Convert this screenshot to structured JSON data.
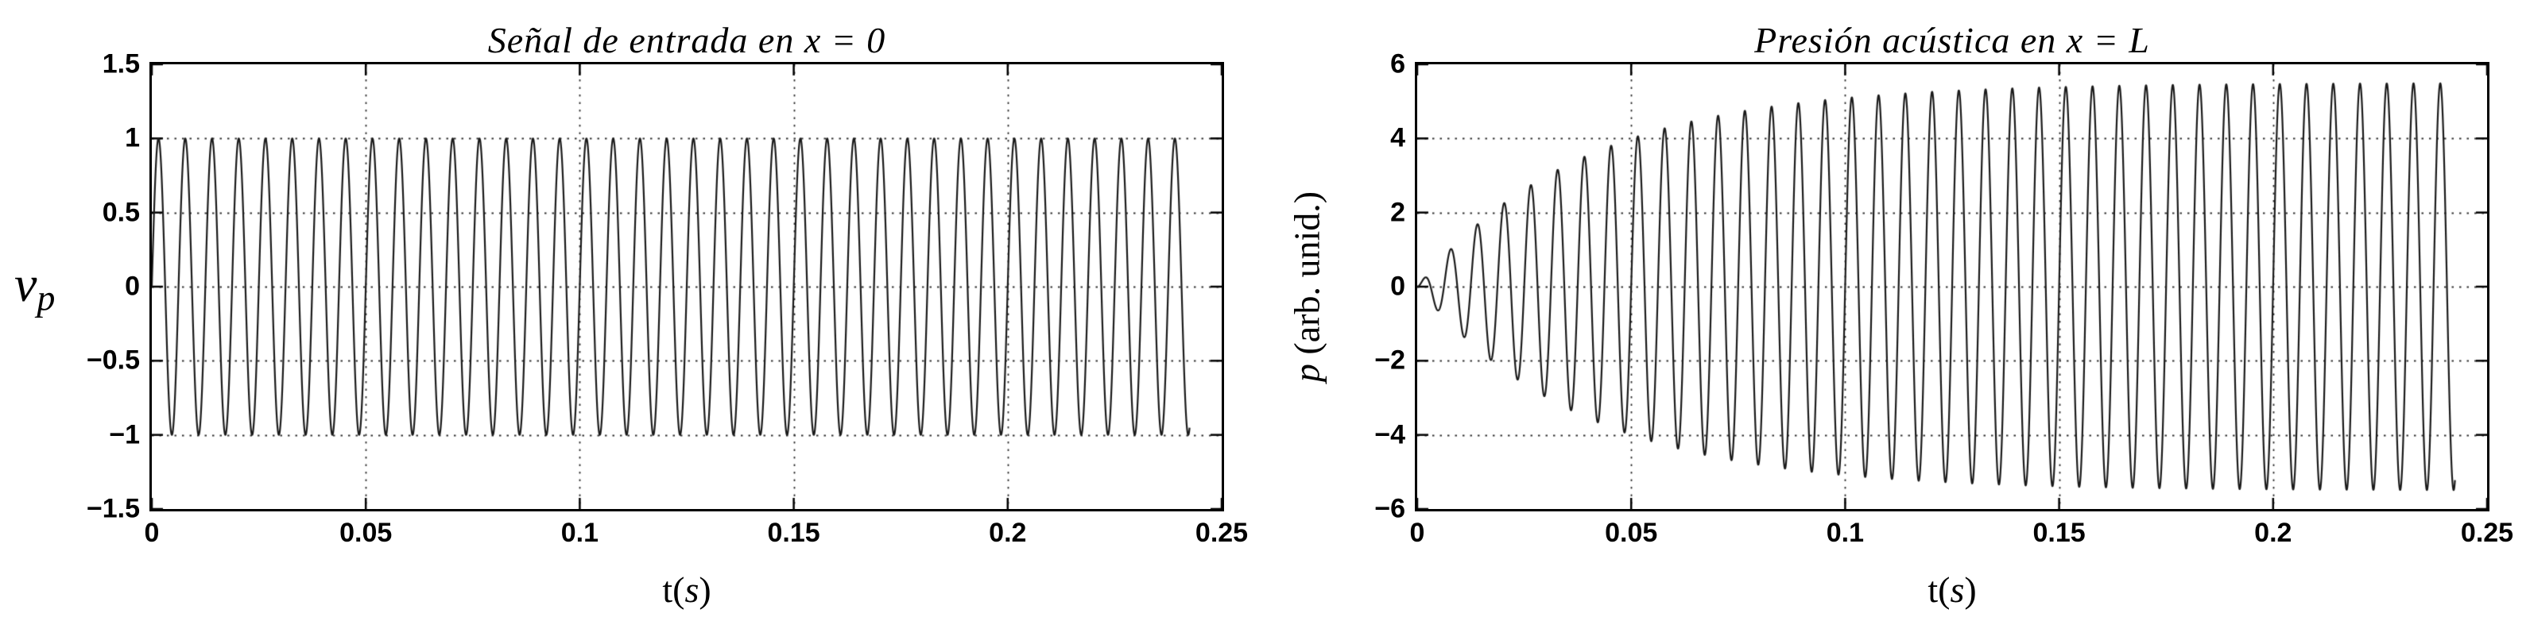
{
  "page": {
    "background": "#ffffff"
  },
  "chart_data": [
    {
      "type": "line",
      "title": "Señal de entrada en x = 0",
      "xlabel": "t(s)",
      "xlabel_pre": "t(",
      "xlabel_var": "s",
      "xlabel_post": ")",
      "ylabel": "v_p",
      "ylabel_main": "v",
      "ylabel_sub": "p",
      "xlim": [
        0,
        0.25
      ],
      "ylim": [
        -1.5,
        1.5
      ],
      "xticks": [
        0,
        0.05,
        0.1,
        0.15,
        0.2,
        0.25
      ],
      "xtick_labels": [
        "0",
        "0.05",
        "0.1",
        "0.15",
        "0.2",
        "0.25"
      ],
      "yticks": [
        -1.5,
        -1,
        -0.5,
        0,
        0.5,
        1,
        1.5
      ],
      "ytick_labels": [
        "−1.5",
        "−1",
        "−0.5",
        "0",
        "0.5",
        "1",
        "1.5"
      ],
      "grid": "dotted",
      "grid_color": "#333333",
      "line_color": "#1a1a1a",
      "signal": {
        "model": "sine",
        "frequency_hz": 160,
        "amplitude": 1,
        "phase_rad": 0,
        "t_start": 0,
        "t_end": 0.2425
      }
    },
    {
      "type": "line",
      "title": "Presión acústica en x = L",
      "xlabel": "t(s)",
      "xlabel_pre": "t(",
      "xlabel_var": "s",
      "xlabel_post": ")",
      "ylabel": "p (arb. unid.)",
      "ylabel_var": "p",
      "ylabel_rest": " (arb. unid.)",
      "xlim": [
        0,
        0.25
      ],
      "ylim": [
        -6,
        6
      ],
      "xticks": [
        0,
        0.05,
        0.1,
        0.15,
        0.2,
        0.25
      ],
      "xtick_labels": [
        "0",
        "0.05",
        "0.1",
        "0.15",
        "0.2",
        "0.25"
      ],
      "yticks": [
        -6,
        -4,
        -2,
        0,
        2,
        4,
        6
      ],
      "ytick_labels": [
        "−6",
        "−4",
        "−2",
        "0",
        "2",
        "4",
        "6"
      ],
      "grid": "dotted",
      "grid_color": "#333333",
      "line_color": "#1a1a1a",
      "signal": {
        "model": "sine_exponential_rise",
        "frequency_hz": 160,
        "steady_amplitude": 5.5,
        "rise_time_constant_s": 0.0385,
        "phase_rad": 0,
        "t_start": 0,
        "t_end": 0.2425
      }
    }
  ]
}
